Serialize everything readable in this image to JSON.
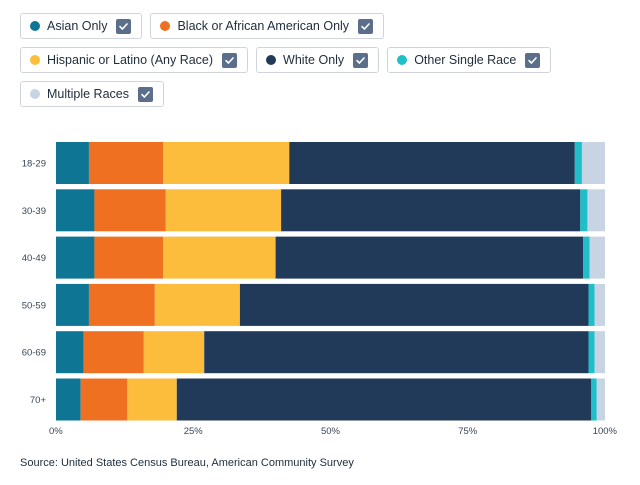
{
  "legend": [
    {
      "label": "Asian Only",
      "color": "#0e7694",
      "checked": true
    },
    {
      "label": "Black or African American Only",
      "color": "#f07021",
      "checked": true
    },
    {
      "label": "Hispanic or Latino (Any Race)",
      "color": "#fcbd3d",
      "checked": true
    },
    {
      "label": "White Only",
      "color": "#213a5a",
      "checked": true
    },
    {
      "label": "Other Single Race",
      "color": "#1fbfc9",
      "checked": true
    },
    {
      "label": "Multiple Races",
      "color": "#c8d4e3",
      "checked": true
    }
  ],
  "source": "Source: United States Census Bureau, American Community Survey",
  "chart_data": {
    "type": "bar",
    "orientation": "horizontal",
    "stacked": true,
    "categories": [
      "18-29",
      "30-39",
      "40-49",
      "50-59",
      "60-69",
      "70+"
    ],
    "series": [
      {
        "name": "Asian Only",
        "color": "#0e7694",
        "values": [
          6,
          7,
          7,
          6,
          5,
          4.5
        ]
      },
      {
        "name": "Black or African American Only",
        "color": "#f07021",
        "values": [
          13.5,
          13,
          12.5,
          12,
          11,
          8.5
        ]
      },
      {
        "name": "Hispanic or Latino (Any Race)",
        "color": "#fcbd3d",
        "values": [
          23,
          21,
          20.5,
          15.5,
          11,
          9
        ]
      },
      {
        "name": "White Only",
        "color": "#213a5a",
        "values": [
          52,
          54.5,
          56,
          63.5,
          70,
          75.5
        ]
      },
      {
        "name": "Other Single Race",
        "color": "#1fbfc9",
        "values": [
          1.3,
          1.3,
          1.2,
          1.1,
          1.1,
          1
        ]
      },
      {
        "name": "Multiple Races",
        "color": "#c8d4e3",
        "values": [
          4.2,
          3.2,
          2.8,
          1.9,
          1.9,
          1.5
        ]
      }
    ],
    "xticks": [
      "0%",
      "25%",
      "50%",
      "75%",
      "100%"
    ],
    "xlim": [
      0,
      100
    ],
    "grid": false,
    "legend_position": "top"
  }
}
